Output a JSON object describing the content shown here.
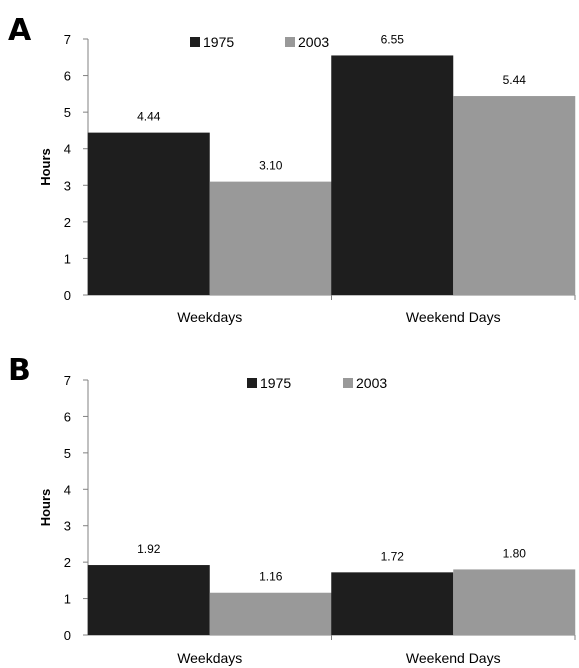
{
  "chart_data": [
    {
      "type": "bar",
      "panel_label": "A",
      "categories": [
        "Weekdays",
        "Weekend Days"
      ],
      "series": [
        {
          "name": "1975",
          "values": [
            4.44,
            6.55
          ],
          "labels": [
            "4.44",
            "6.55"
          ]
        },
        {
          "name": "2003",
          "values": [
            3.1,
            5.44
          ],
          "labels": [
            "3.10",
            "5.44"
          ]
        }
      ],
      "ylabel": "Hours",
      "ylim": [
        0,
        7
      ],
      "yticks": [
        "0",
        "1",
        "2",
        "3",
        "4",
        "5",
        "6",
        "7"
      ],
      "grid": false,
      "legend": "top-center"
    },
    {
      "type": "bar",
      "panel_label": "B",
      "categories": [
        "Weekdays",
        "Weekend Days"
      ],
      "series": [
        {
          "name": "1975",
          "values": [
            1.92,
            1.72
          ],
          "labels": [
            "1.92",
            "1.72"
          ]
        },
        {
          "name": "2003",
          "values": [
            1.16,
            1.8
          ],
          "labels": [
            "1.16",
            "1.80"
          ]
        }
      ],
      "ylabel": "Hours",
      "ylim": [
        0,
        7
      ],
      "yticks": [
        "0",
        "1",
        "2",
        "3",
        "4",
        "5",
        "6",
        "7"
      ],
      "grid": false,
      "legend": "top-center"
    }
  ],
  "colors": {
    "1975": "#1e1e1e",
    "2003": "#999999"
  }
}
